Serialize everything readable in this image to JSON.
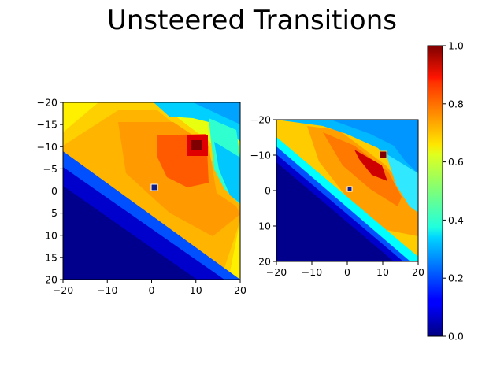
{
  "title": "Unsteered Transitions",
  "chart_data": [
    {
      "type": "heatmap",
      "name": "left-panel",
      "xlim": [
        -20,
        20
      ],
      "ylim": [
        20,
        -20
      ],
      "xticks": [
        -20,
        -10,
        0,
        10,
        20
      ],
      "yticks": [
        -20,
        -15,
        -10,
        -5,
        0,
        5,
        10,
        15,
        20
      ],
      "xtick_labels": [
        "−20",
        "−10",
        "0",
        "10",
        "20"
      ],
      "ytick_labels": [
        "−20",
        "−15",
        "−10",
        "−5",
        "0",
        "5",
        "10",
        "15",
        "20"
      ],
      "markers": [
        {
          "label": "start",
          "x": 0.5,
          "y": -0.5,
          "color": "#0b1e8c"
        },
        {
          "label": "goal",
          "x": 10,
          "y": -10.5,
          "color": "#7f0000"
        }
      ]
    },
    {
      "type": "heatmap",
      "name": "right-panel",
      "xlim": [
        -20,
        20
      ],
      "ylim": [
        20,
        -20
      ],
      "xticks": [
        -20,
        -10,
        0,
        10,
        20
      ],
      "yticks": [
        -20,
        -10,
        0,
        10,
        20
      ],
      "xtick_labels": [
        "−20",
        "−10",
        "0",
        "10",
        "20"
      ],
      "ytick_labels": [
        "−20",
        "−10",
        "0",
        "10",
        "20"
      ],
      "markers": [
        {
          "label": "start",
          "x": 0.5,
          "y": -0.5,
          "color": "#0b1e8c"
        },
        {
          "label": "goal",
          "x": 10,
          "y": -10,
          "color": "#7f0000"
        }
      ]
    }
  ],
  "colorbar": {
    "colormap": "jet",
    "range": [
      0.0,
      1.0
    ],
    "ticks": [
      0.0,
      0.2,
      0.4,
      0.6,
      0.8,
      1.0
    ],
    "tick_labels": [
      "0.0",
      "0.2",
      "0.4",
      "0.6",
      "0.8",
      "1.0"
    ]
  }
}
